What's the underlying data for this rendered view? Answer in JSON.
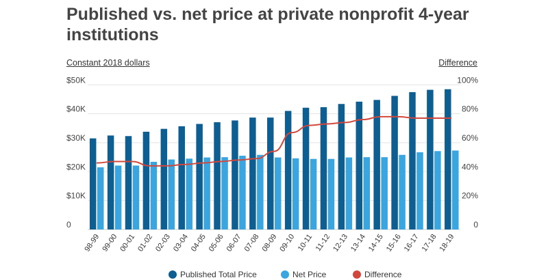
{
  "chart_data": {
    "type": "bar",
    "title": "Published vs. net price at private nonprofit 4-year institutions",
    "left_axis_label": "Constant 2018 dollars",
    "right_axis_label": "Difference",
    "categories": [
      "98-99",
      "99-00",
      "00-01",
      "01-02",
      "02-03",
      "03-04",
      "04-05",
      "05-06",
      "06-07",
      "07-08",
      "08-09",
      "09-10",
      "10-11",
      "11-12",
      "12-13",
      "13-14",
      "14-15",
      "15-16",
      "16-17",
      "17-18",
      "18-19"
    ],
    "left_ylim": [
      0,
      50000
    ],
    "left_ticks": [
      "0",
      "$10K",
      "$20K",
      "$30K",
      "$40K",
      "$50K"
    ],
    "right_ylim": [
      0,
      100
    ],
    "right_ticks": [
      "0",
      "20%",
      "40%",
      "60%",
      "80%",
      "100%"
    ],
    "grid": true,
    "legend_position": "bottom",
    "series": [
      {
        "name": "Published Total Price",
        "kind": "bar",
        "axis": "left",
        "color": "#0f5e92",
        "values": [
          31500,
          32500,
          32300,
          33800,
          34800,
          35700,
          36500,
          37100,
          37700,
          38700,
          38700,
          41000,
          42100,
          42300,
          43400,
          44200,
          44800,
          46200,
          47500,
          48300,
          48500
        ]
      },
      {
        "name": "Net Price",
        "kind": "bar",
        "axis": "left",
        "color": "#3aa5df",
        "values": [
          21500,
          22100,
          22100,
          23400,
          24200,
          24500,
          24900,
          25000,
          25500,
          25800,
          24900,
          24600,
          24400,
          24400,
          24900,
          25000,
          25000,
          25800,
          26700,
          27100,
          27300
        ]
      },
      {
        "name": "Difference",
        "kind": "line",
        "axis": "right",
        "unit": "%",
        "color": "#d2473c",
        "values": [
          46,
          47,
          47,
          44,
          44,
          45,
          46,
          47,
          48,
          49,
          54,
          67,
          72,
          73,
          74,
          76,
          78,
          78,
          77,
          77,
          77
        ]
      }
    ]
  }
}
